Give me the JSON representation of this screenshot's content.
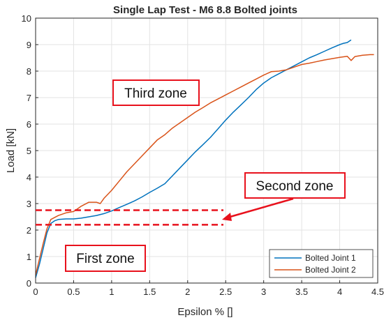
{
  "chart_data": {
    "type": "line",
    "title": "Single Lap Test - M6 8.8 Bolted joints",
    "xlabel": "Epsilon % []",
    "ylabel": "Load [kN]",
    "xlim": [
      0,
      4.5
    ],
    "ylim": [
      0,
      10
    ],
    "x_ticks": [
      0,
      0.5,
      1,
      1.5,
      2,
      2.5,
      3,
      3.5,
      4,
      4.5
    ],
    "x_tick_labels": [
      "0",
      "0.5",
      "1",
      "1.5",
      "2",
      "2.5",
      "3",
      "3.5",
      "4",
      "4.5"
    ],
    "y_ticks": [
      0,
      1,
      2,
      3,
      4,
      5,
      6,
      7,
      8,
      9,
      10
    ],
    "y_tick_labels": [
      "0",
      "1",
      "2",
      "3",
      "4",
      "5",
      "6",
      "7",
      "8",
      "9",
      "10"
    ],
    "grid": true,
    "legend_position": "bottom-right",
    "series": [
      {
        "name": "Bolted Joint 1",
        "color": "#0072BD",
        "x": [
          0,
          0.05,
          0.1,
          0.15,
          0.2,
          0.25,
          0.3,
          0.4,
          0.5,
          0.6,
          0.7,
          0.8,
          0.9,
          1.0,
          1.1,
          1.2,
          1.3,
          1.4,
          1.5,
          1.6,
          1.7,
          1.8,
          1.9,
          2.0,
          2.1,
          2.2,
          2.3,
          2.4,
          2.5,
          2.6,
          2.7,
          2.8,
          2.9,
          3.0,
          3.1,
          3.2,
          3.3,
          3.4,
          3.5,
          3.6,
          3.7,
          3.8,
          3.9,
          4.0,
          4.05,
          4.1,
          4.15
        ],
        "y": [
          0.2,
          0.7,
          1.3,
          1.9,
          2.25,
          2.35,
          2.4,
          2.42,
          2.42,
          2.45,
          2.5,
          2.55,
          2.62,
          2.72,
          2.85,
          2.97,
          3.1,
          3.25,
          3.42,
          3.58,
          3.75,
          4.05,
          4.35,
          4.65,
          4.95,
          5.22,
          5.5,
          5.82,
          6.15,
          6.45,
          6.72,
          7.0,
          7.3,
          7.55,
          7.75,
          7.9,
          8.05,
          8.2,
          8.35,
          8.5,
          8.62,
          8.75,
          8.88,
          9.0,
          9.05,
          9.08,
          9.18
        ]
      },
      {
        "name": "Bolted Joint 2",
        "color": "#D95319",
        "x": [
          0,
          0.05,
          0.1,
          0.15,
          0.2,
          0.3,
          0.4,
          0.5,
          0.55,
          0.6,
          0.7,
          0.8,
          0.85,
          0.9,
          1.0,
          1.1,
          1.2,
          1.3,
          1.4,
          1.5,
          1.6,
          1.7,
          1.8,
          1.9,
          2.0,
          2.1,
          2.2,
          2.3,
          2.4,
          2.5,
          2.6,
          2.7,
          2.8,
          2.9,
          3.0,
          3.1,
          3.2,
          3.3,
          3.4,
          3.5,
          3.6,
          3.7,
          3.8,
          3.9,
          4.0,
          4.1,
          4.15,
          4.2,
          4.3,
          4.4,
          4.45
        ],
        "y": [
          0.3,
          0.9,
          1.5,
          2.05,
          2.4,
          2.55,
          2.65,
          2.7,
          2.8,
          2.9,
          3.05,
          3.05,
          3.0,
          3.2,
          3.5,
          3.85,
          4.2,
          4.5,
          4.8,
          5.1,
          5.4,
          5.6,
          5.85,
          6.05,
          6.25,
          6.45,
          6.62,
          6.8,
          6.95,
          7.1,
          7.25,
          7.4,
          7.55,
          7.7,
          7.85,
          7.98,
          8.0,
          8.05,
          8.15,
          8.25,
          8.3,
          8.36,
          8.42,
          8.47,
          8.52,
          8.56,
          8.4,
          8.55,
          8.6,
          8.62,
          8.62
        ]
      }
    ],
    "annotations": {
      "boxes": [
        {
          "label": "Third zone"
        },
        {
          "label": "Second zone"
        },
        {
          "label": "First zone"
        }
      ],
      "dashed_lines": [
        {
          "y": 2.75
        },
        {
          "y": 2.2
        }
      ],
      "arrow": {
        "from_box": "Second zone",
        "to": {
          "x": 2.47,
          "y": 2.35
        }
      },
      "color": "#e8111c"
    }
  }
}
